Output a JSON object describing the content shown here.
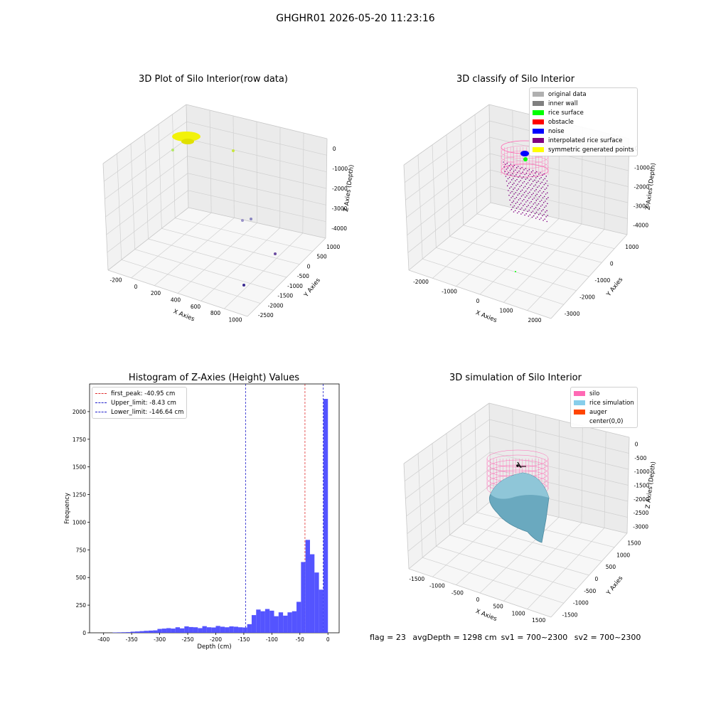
{
  "suptitle": "GHGHR01 2026-05-20 11:23:16",
  "colors": {
    "hist_bar": "#4b4bff",
    "peak_line": "#e03030",
    "limit_line": "#2222cc",
    "yellow": "#f2f20a",
    "purple": "#800080",
    "silo_pink": "#ff69b4",
    "rice_blue": "#87cefa",
    "auger_orange": "#ff4500",
    "noise_blue": "#0000ff",
    "rice_green": "#00ff00"
  },
  "panels": {
    "raw": {
      "title": "3D Plot of Silo Interior(row data)",
      "xlabel": "X Axies",
      "ylabel": "Y Axies",
      "zlabel": "Z Axies (Depth)",
      "xticks": [
        "-200",
        "0",
        "200",
        "400",
        "600",
        "800",
        "1000"
      ],
      "yticks": [
        "1000",
        "500",
        "0",
        "-500",
        "-1000",
        "-1500",
        "-2000",
        "-2500"
      ],
      "zticks": [
        "0",
        "-1000",
        "-2000",
        "-3000",
        "-4000"
      ]
    },
    "classify": {
      "title": "3D classify of Silo Interior",
      "xlabel": "X Axies",
      "ylabel": "Y Axies",
      "zlabel": "Z Axies (Depth)",
      "xticks": [
        "-2000",
        "-1000",
        "0",
        "1000",
        "2000"
      ],
      "yticks": [
        "1000",
        "0",
        "-1000",
        "-2000",
        "-3000"
      ],
      "zticks": [
        "0",
        "-1000",
        "-2000",
        "-3000",
        "-4000"
      ],
      "legend": [
        {
          "label": "original data",
          "color": "#b0b0b0"
        },
        {
          "label": "inner wall",
          "color": "#808080"
        },
        {
          "label": "rice surface",
          "color": "#00ff00"
        },
        {
          "label": "obstacle",
          "color": "#ff0000"
        },
        {
          "label": "noise",
          "color": "#0000ff"
        },
        {
          "label": "interpolated rice surface",
          "color": "#800080"
        },
        {
          "label": "symmetric generated points",
          "color": "#ffff00"
        }
      ]
    },
    "histogram": {
      "title": "Histogram of Z-Axies (Height) Values",
      "legend": [
        {
          "label": "first_peak: -40.95 cm",
          "color": "#e03030"
        },
        {
          "label": "Upper_limit: -8.43 cm",
          "color": "#2222cc"
        },
        {
          "label": "Lower_limit: -146.64 cm",
          "color": "#2222cc"
        }
      ]
    },
    "simulation": {
      "title": "3D simulation of Silo Interior",
      "xlabel": "X Axies",
      "ylabel": "Y Axies",
      "zlabel": "Z Axies (Depth)",
      "xticks": [
        "-1500",
        "-1000",
        "-500",
        "0",
        "500",
        "1000",
        "1500"
      ],
      "yticks": [
        "1500",
        "1000",
        "500",
        "0",
        "-500",
        "-1000",
        "-1500"
      ],
      "zticks": [
        "0",
        "-500",
        "-1000",
        "-1500",
        "-2000",
        "-2500",
        "-3000"
      ],
      "legend": [
        {
          "label": "silo",
          "color": "#ff69b4"
        },
        {
          "label": "rice simulation",
          "color": "#87ceeb"
        },
        {
          "label": "auger",
          "color": "#ff4500"
        },
        {
          "label": "center(0,0)",
          "color": "transparent"
        }
      ]
    }
  },
  "status": {
    "flag": "flag = 23",
    "avg": "avgDepth = 1298 cm",
    "sv1": "sv1 = 700~2300",
    "sv2": "sv2 = 700~2300"
  },
  "chart_data": [
    {
      "type": "bar",
      "title": "Histogram of Z-Axies (Height) Values",
      "xlabel": "Depth (cm)",
      "ylabel": "Frequency",
      "xlim": [
        -425,
        20
      ],
      "ylim": [
        0,
        2250
      ],
      "xticks": [
        -400,
        -350,
        -300,
        -250,
        -200,
        -150,
        -100,
        -50,
        0
      ],
      "yticks": [
        0,
        250,
        500,
        750,
        1000,
        1250,
        1500,
        1750,
        2000
      ],
      "bin_width": 8,
      "bin_starts": [
        -384,
        -376,
        -368,
        -360,
        -352,
        -344,
        -336,
        -328,
        -320,
        -312,
        -304,
        -296,
        -288,
        -280,
        -272,
        -264,
        -256,
        -248,
        -240,
        -232,
        -224,
        -216,
        -208,
        -200,
        -192,
        -184,
        -176,
        -168,
        -160,
        -152,
        -144,
        -136,
        -128,
        -120,
        -112,
        -104,
        -96,
        -88,
        -80,
        -72,
        -64,
        -56,
        -48,
        -40,
        -32,
        -24,
        -16,
        -8
      ],
      "values": [
        3,
        4,
        5,
        6,
        10,
        12,
        15,
        18,
        20,
        22,
        35,
        38,
        42,
        38,
        50,
        40,
        58,
        52,
        50,
        42,
        60,
        50,
        48,
        62,
        55,
        50,
        58,
        55,
        50,
        48,
        78,
        160,
        210,
        195,
        215,
        200,
        150,
        185,
        155,
        185,
        195,
        280,
        640,
        840,
        710,
        545,
        390,
        2115
      ],
      "vlines": [
        {
          "name": "first_peak",
          "x": -40.95
        },
        {
          "name": "Upper_limit",
          "x": -8.43
        },
        {
          "name": "Lower_limit",
          "x": -146.64
        }
      ]
    }
  ]
}
